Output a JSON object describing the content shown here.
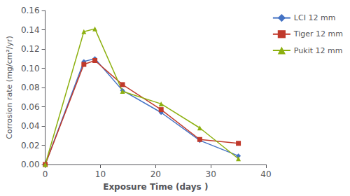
{
  "chart_data": {
    "type": "line",
    "xlabel": "Exposure Time (days )",
    "ylabel": "Corrosion rate (mg/cm²/yr)",
    "xlim": [
      0,
      40
    ],
    "xticks": [
      0,
      10,
      20,
      30,
      40
    ],
    "ylim": [
      0,
      0.16
    ],
    "yticks": [
      {
        "value": 0,
        "label": "0.00"
      },
      0.02,
      0.04,
      0.06,
      0.08,
      {
        "value": 0.1,
        "label": "0.10"
      },
      0.12,
      0.14,
      0.16
    ],
    "grid": false,
    "legend": "right",
    "series": [
      {
        "name": "LCI 12 mm",
        "color": "#4472C4",
        "marker": "diamond",
        "x": [
          0,
          7,
          9,
          14,
          21,
          28,
          35
        ],
        "values": [
          0,
          0.107,
          0.11,
          0.077,
          0.054,
          0.025,
          0.009
        ]
      },
      {
        "name": "Tiger 12 mm",
        "color": "#C0392B",
        "marker": "square",
        "x": [
          0,
          7,
          9,
          14,
          21,
          28,
          35
        ],
        "values": [
          0,
          0.104,
          0.108,
          0.083,
          0.057,
          0.026,
          0.022
        ]
      },
      {
        "name": "Pukit 12 mm",
        "color": "#8DB010",
        "marker": "triangle",
        "x": [
          0,
          7,
          9,
          14,
          21,
          28,
          35
        ],
        "values": [
          0,
          0.138,
          0.141,
          0.076,
          0.063,
          0.038,
          0.006
        ]
      }
    ]
  }
}
